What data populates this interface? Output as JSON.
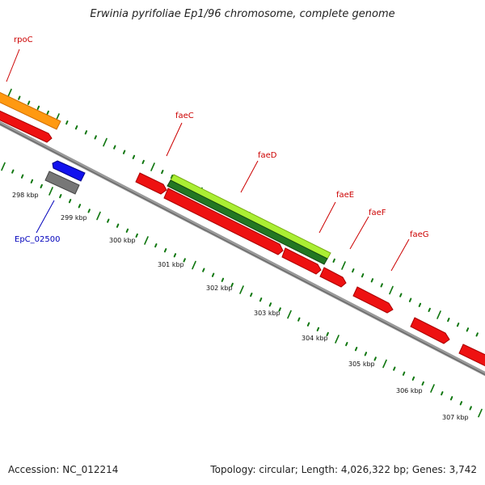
{
  "title": "Erwinia pyrifoliae Ep1/96 chromosome, complete genome",
  "footer": {
    "accession": "Accession: NC_012214",
    "summary": "Topology: circular; Length: 4,026,322 bp; Genes: 3,742"
  },
  "gene_labels": [
    {
      "name": "rpoC",
      "color": "#cc0000"
    },
    {
      "name": "faeC",
      "color": "#cc0000"
    },
    {
      "name": "faeD",
      "color": "#cc0000"
    },
    {
      "name": "faeE",
      "color": "#cc0000"
    },
    {
      "name": "faeF",
      "color": "#cc0000"
    },
    {
      "name": "faeG",
      "color": "#cc0000"
    },
    {
      "name": "EpC_02500",
      "color": "#0000bb"
    }
  ],
  "kbp_labels": [
    "298 kbp",
    "299 kbp",
    "300 kbp",
    "301 kbp",
    "302 kbp",
    "303 kbp",
    "304 kbp",
    "305 kbp",
    "306 kbp",
    "307 kbp"
  ],
  "colors": {
    "cds_red": "#ee1111",
    "rna_orange": "#ff9911",
    "blue_gene": "#1111ee",
    "gray_gene": "#777777",
    "light_green": "#aaee33",
    "dark_green": "#227722",
    "backbone": "#888888",
    "tick_green": "#117711"
  }
}
